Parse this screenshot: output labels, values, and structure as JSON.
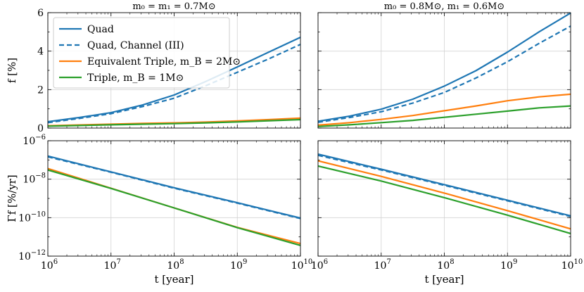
{
  "colors": {
    "quad": "#1f77b4",
    "quad_channel": "#1f77b4",
    "equiv_triple": "#ff7f0e",
    "triple": "#2ca02c",
    "grid": "#d3d3d3",
    "axis": "#000000"
  },
  "chart_data": [
    {
      "type": "line",
      "panel": "top-left",
      "title": "m₀ = m₁ = 0.7M⊙",
      "xlabel": "",
      "ylabel": "f [%]",
      "xscale": "log",
      "yscale": "linear",
      "xlim": [
        1000000.0,
        10000000000.0
      ],
      "ylim": [
        0,
        6
      ],
      "yticks": [
        "0",
        "2",
        "4",
        "6"
      ],
      "grid": true,
      "legend": "upper-left",
      "x": [
        1000000.0,
        3160000.0,
        10000000.0,
        31600000.0,
        100000000.0,
        316000000.0,
        1000000000.0,
        3160000000.0,
        10000000000.0
      ],
      "series": [
        {
          "name": "Quad",
          "style": "solid",
          "values": [
            0.33,
            0.55,
            0.8,
            1.2,
            1.72,
            2.42,
            3.18,
            3.95,
            4.72
          ]
        },
        {
          "name": "Quad, Channel (III)",
          "style": "dashed",
          "values": [
            0.28,
            0.5,
            0.75,
            1.12,
            1.55,
            2.2,
            2.9,
            3.6,
            4.35
          ]
        },
        {
          "name": "Equivalent Triple, m_B = 2M⊙",
          "style": "solid",
          "values": [
            0.12,
            0.16,
            0.2,
            0.24,
            0.27,
            0.31,
            0.37,
            0.44,
            0.52
          ]
        },
        {
          "name": "Triple, m_B = 1M⊙",
          "style": "solid",
          "values": [
            0.1,
            0.13,
            0.17,
            0.2,
            0.23,
            0.27,
            0.32,
            0.38,
            0.44
          ]
        }
      ]
    },
    {
      "type": "line",
      "panel": "top-right",
      "title": "m₀ = 0.8M⊙, m₁ = 0.6M⊙",
      "xlabel": "",
      "ylabel": "",
      "xscale": "log",
      "yscale": "linear",
      "xlim": [
        1000000.0,
        10000000000.0
      ],
      "ylim": [
        0,
        6
      ],
      "grid": true,
      "x": [
        1000000.0,
        3160000.0,
        10000000.0,
        31600000.0,
        100000000.0,
        316000000.0,
        1000000000.0,
        3160000000.0,
        10000000000.0
      ],
      "series": [
        {
          "name": "Quad",
          "style": "solid",
          "values": [
            0.35,
            0.62,
            0.98,
            1.5,
            2.18,
            2.98,
            3.95,
            5.0,
            5.98
          ]
        },
        {
          "name": "Quad, Channel (III)",
          "style": "dashed",
          "values": [
            0.3,
            0.55,
            0.85,
            1.3,
            1.85,
            2.6,
            3.45,
            4.4,
            5.3
          ]
        },
        {
          "name": "Equivalent Triple, m_B = 2M⊙",
          "style": "solid",
          "values": [
            0.15,
            0.28,
            0.45,
            0.65,
            0.9,
            1.15,
            1.42,
            1.62,
            1.76
          ]
        },
        {
          "name": "Triple, m_B = 1M⊙",
          "style": "solid",
          "values": [
            0.08,
            0.17,
            0.28,
            0.4,
            0.56,
            0.72,
            0.88,
            1.05,
            1.15
          ]
        }
      ]
    },
    {
      "type": "line",
      "panel": "bottom-left",
      "title": "",
      "xlabel": "t [year]",
      "ylabel": "Γf [%/yr]",
      "xscale": "log",
      "yscale": "log",
      "xlim": [
        1000000.0,
        10000000000.0
      ],
      "ylim": [
        1e-12,
        1e-06
      ],
      "xticks_exp": [
        6,
        7,
        8,
        9,
        10
      ],
      "yticks_exp": [
        -12,
        -10,
        -8,
        -6
      ],
      "grid": true,
      "x": [
        1000000.0,
        10000000.0,
        100000000.0,
        1000000000.0,
        10000000000.0
      ],
      "series": [
        {
          "name": "Quad",
          "style": "solid",
          "values": [
            1.6e-07,
            2.4e-08,
            3.6e-09,
            6e-10,
            9.5e-11
          ]
        },
        {
          "name": "Quad, Channel (III)",
          "style": "dashed",
          "values": [
            1.45e-07,
            2.3e-08,
            3.4e-09,
            5.7e-10,
            9e-11
          ]
        },
        {
          "name": "Equivalent Triple, m_B = 2M⊙",
          "style": "solid",
          "values": [
            3.6e-08,
            3.4e-09,
            3.2e-10,
            3.1e-11,
            4.5e-12
          ]
        },
        {
          "name": "Triple, m_B = 1M⊙",
          "style": "solid",
          "values": [
            3e-08,
            3.3e-09,
            3.2e-10,
            3e-11,
            3.6e-12
          ]
        }
      ]
    },
    {
      "type": "line",
      "panel": "bottom-right",
      "title": "",
      "xlabel": "t [year]",
      "ylabel": "",
      "xscale": "log",
      "yscale": "log",
      "xlim": [
        1000000.0,
        10000000000.0
      ],
      "ylim": [
        1e-12,
        1e-06
      ],
      "xticks_exp": [
        6,
        7,
        8,
        9,
        10
      ],
      "grid": true,
      "x": [
        1000000.0,
        10000000.0,
        100000000.0,
        1000000000.0,
        10000000000.0
      ],
      "series": [
        {
          "name": "Quad",
          "style": "solid",
          "values": [
            2e-07,
            3.3e-08,
            5.2e-09,
            8e-10,
            1.25e-10
          ]
        },
        {
          "name": "Quad, Channel (III)",
          "style": "dashed",
          "values": [
            1.75e-07,
            3e-08,
            4.8e-09,
            7.5e-10,
            1.15e-10
          ]
        },
        {
          "name": "Equivalent Triple, m_B = 2M⊙",
          "style": "solid",
          "values": [
            9e-08,
            1.4e-08,
            1.9e-09,
            2.3e-10,
            2.6e-11
          ]
        },
        {
          "name": "Triple, m_B = 1M⊙",
          "style": "solid",
          "values": [
            4.8e-08,
            8e-09,
            1.1e-09,
            1.35e-10,
            1.5e-11
          ]
        }
      ]
    }
  ]
}
